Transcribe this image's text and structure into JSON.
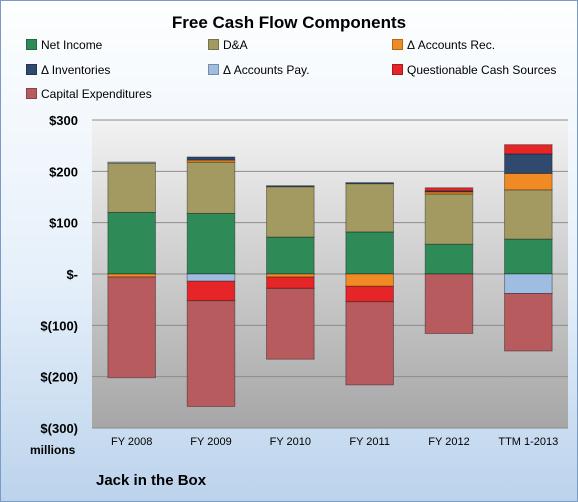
{
  "chart_data": {
    "type": "bar",
    "stacked": true,
    "title": "Free Cash Flow Components",
    "units_label": "millions",
    "company": "Jack in the Box",
    "categories": [
      "FY 2008",
      "FY 2009",
      "FY 2010",
      "FY 2011",
      "FY 2012",
      "TTM 1-2013"
    ],
    "ylim": [
      -300,
      300
    ],
    "yticks": [
      300,
      200,
      100,
      0,
      -100,
      -200,
      -300
    ],
    "ytick_labels": [
      "$300",
      "$200",
      "$100",
      "$-",
      "$(100)",
      "$(200)",
      "$(300)"
    ],
    "grid": true,
    "legend_position": "top",
    "series": [
      {
        "name": "Net Income",
        "color": "#2e8b57",
        "values": [
          120,
          118,
          72,
          82,
          58,
          68
        ]
      },
      {
        "name": "D&A",
        "color": "#a39a62",
        "values": [
          96,
          100,
          98,
          94,
          98,
          96
        ]
      },
      {
        "name": "Δ Accounts Rec.",
        "color": "#f08a24",
        "values": [
          -6,
          4,
          -6,
          -24,
          4,
          32
        ]
      },
      {
        "name": "Δ Inventories",
        "color": "#2f4a6e",
        "values": [
          0,
          6,
          2,
          2,
          2,
          38
        ]
      },
      {
        "name": "Δ Accounts Pay.",
        "color": "#9ebde0",
        "values": [
          2,
          -14,
          0,
          0,
          0,
          -38
        ]
      },
      {
        "name": "Questionable Cash Sources",
        "color": "#e52528",
        "values": [
          0,
          -38,
          -22,
          -30,
          6,
          18
        ]
      },
      {
        "name": "Capital Expenditures",
        "color": "#b85b5e",
        "values": [
          -196,
          -206,
          -138,
          -162,
          -116,
          -112
        ]
      }
    ]
  }
}
